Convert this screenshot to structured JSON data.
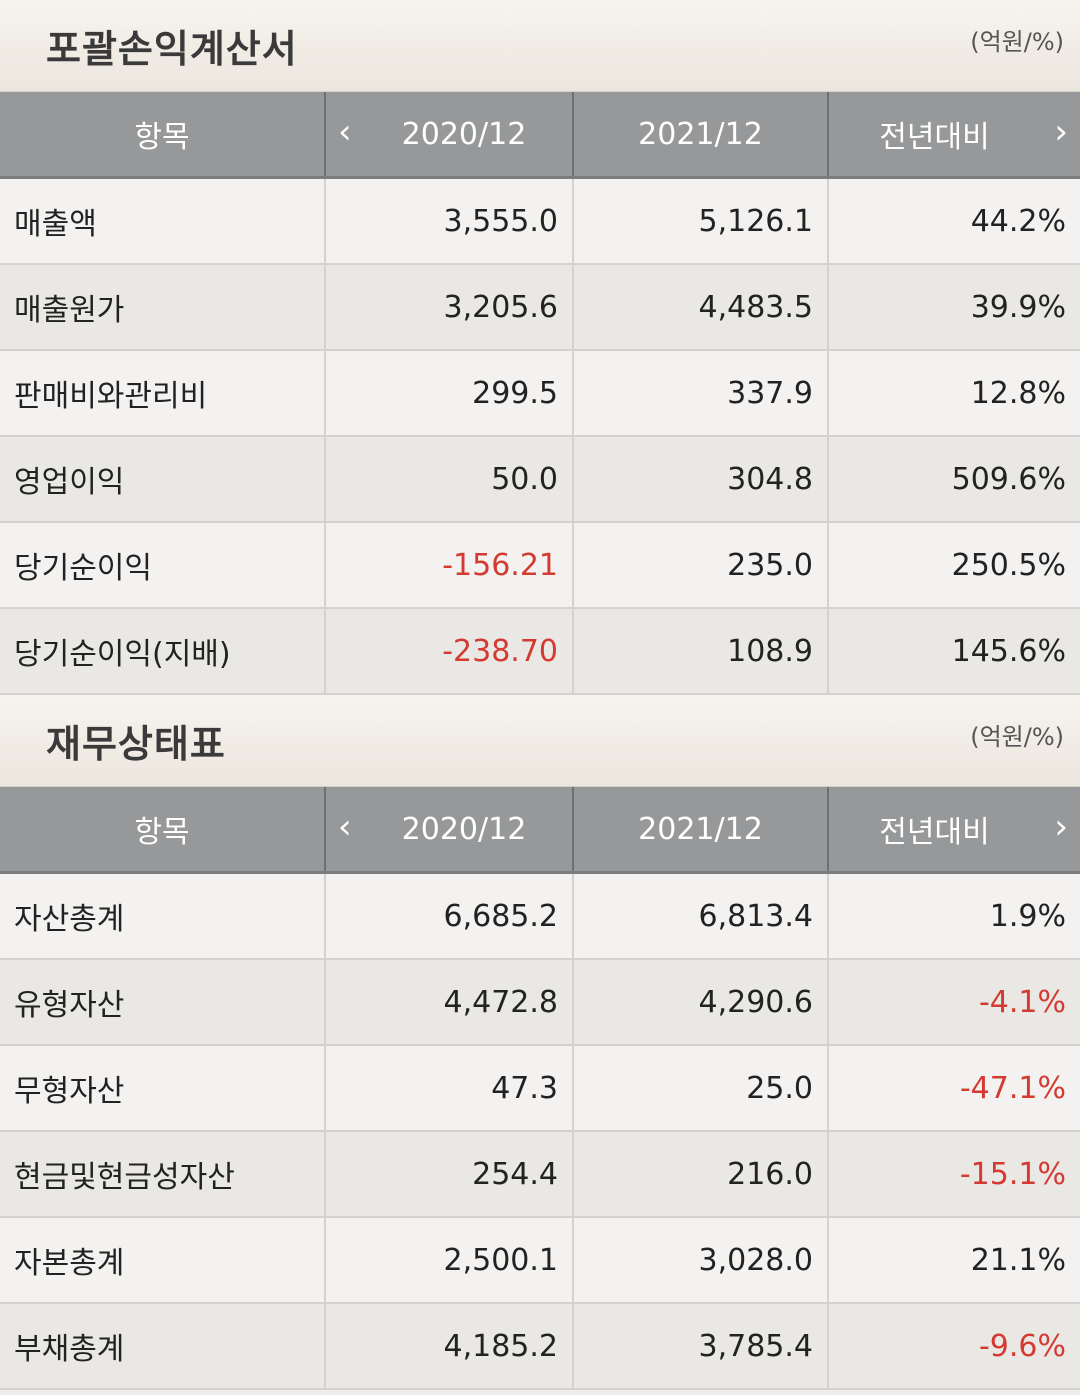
{
  "income": {
    "title": "포괄손익계산서",
    "unit": "(억원/%)",
    "headers": {
      "item": "항목",
      "col1": "2020/12",
      "col2": "2021/12",
      "col3": "전년대비"
    },
    "rows": [
      {
        "label": "매출액",
        "v2020": "3,555.0",
        "v2021": "5,126.1",
        "yoy": "44.2%"
      },
      {
        "label": "매출원가",
        "v2020": "3,205.6",
        "v2021": "4,483.5",
        "yoy": "39.9%"
      },
      {
        "label": "판매비와관리비",
        "v2020": "299.5",
        "v2021": "337.9",
        "yoy": "12.8%"
      },
      {
        "label": "영업이익",
        "v2020": "50.0",
        "v2021": "304.8",
        "yoy": "509.6%"
      },
      {
        "label": "당기순이익",
        "v2020": "-156.21",
        "v2021": "235.0",
        "yoy": "250.5%"
      },
      {
        "label": "당기순이익(지배)",
        "v2020": "-238.70",
        "v2021": "108.9",
        "yoy": "145.6%"
      }
    ]
  },
  "balance": {
    "title": "재무상태표",
    "unit": "(억원/%)",
    "headers": {
      "item": "항목",
      "col1": "2020/12",
      "col2": "2021/12",
      "col3": "전년대비"
    },
    "rows": [
      {
        "label": "자산총계",
        "v2020": "6,685.2",
        "v2021": "6,813.4",
        "yoy": "1.9%"
      },
      {
        "label": "유형자산",
        "v2020": "4,472.8",
        "v2021": "4,290.6",
        "yoy": "-4.1%"
      },
      {
        "label": "무형자산",
        "v2020": "47.3",
        "v2021": "25.0",
        "yoy": "-47.1%"
      },
      {
        "label": "현금및현금성자산",
        "v2020": "254.4",
        "v2021": "216.0",
        "yoy": "-15.1%"
      },
      {
        "label": "자본총계",
        "v2020": "2,500.1",
        "v2021": "3,028.0",
        "yoy": "21.1%"
      },
      {
        "label": "부채총계",
        "v2020": "4,185.2",
        "v2021": "3,785.4",
        "yoy": "-9.6%"
      }
    ]
  },
  "icons": {
    "prev": "chevron-left-icon",
    "next": "chevron-right-icon"
  },
  "colors": {
    "negative": "#d53a32",
    "header_bg": "#979899"
  }
}
